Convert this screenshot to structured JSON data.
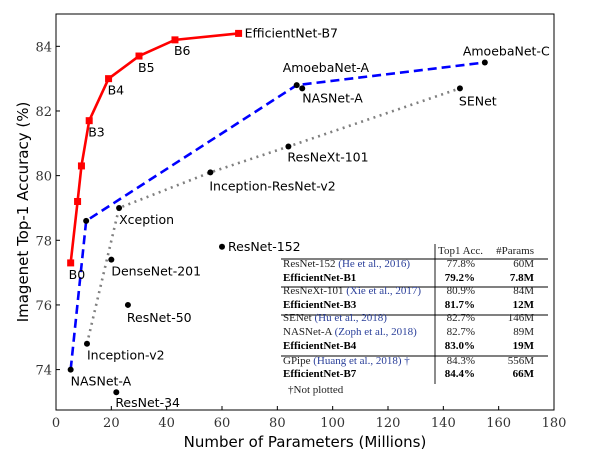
{
  "chart_data": {
    "type": "line",
    "xlabel": "Number of Parameters (Millions)",
    "ylabel": "Imagenet Top-1 Accuracy (%)",
    "xlim": [
      0,
      180
    ],
    "ylim": [
      72.75,
      85
    ],
    "xticks": [
      0,
      20,
      40,
      60,
      80,
      100,
      120,
      140,
      160,
      180
    ],
    "yticks": [
      74,
      76,
      78,
      80,
      82,
      84
    ],
    "grid": false,
    "series": [
      {
        "style": "red-solid-square",
        "color": "#ff0000",
        "points": [
          {
            "x": 5.3,
            "y": 77.3,
            "label": "B0"
          },
          {
            "x": 7.8,
            "y": 79.2,
            "label": ""
          },
          {
            "x": 9.2,
            "y": 80.3,
            "label": ""
          },
          {
            "x": 12,
            "y": 81.7,
            "label": "B3"
          },
          {
            "x": 19,
            "y": 83.0,
            "label": "B4"
          },
          {
            "x": 30,
            "y": 83.7,
            "label": "B5"
          },
          {
            "x": 43,
            "y": 84.2,
            "label": "B6"
          },
          {
            "x": 66,
            "y": 84.4,
            "label": "EfficientNet-B7"
          }
        ]
      },
      {
        "style": "blue-dashed",
        "color": "#0000ff",
        "points": [
          {
            "x": 5.3,
            "y": 74.0,
            "label": "NASNet-A"
          },
          {
            "x": 10.9,
            "y": 78.6,
            "label": ""
          },
          {
            "x": 87,
            "y": 82.8,
            "label": "AmoebaNet-A"
          },
          {
            "x": 155,
            "y": 83.5,
            "label": "AmoebaNet-C"
          }
        ]
      },
      {
        "style": "gray-dotted",
        "color": "#808080",
        "points": [
          {
            "x": 11.2,
            "y": 74.8,
            "label": "Inception-v2"
          },
          {
            "x": 22.8,
            "y": 79.0,
            "label": "Xception"
          },
          {
            "x": 55.8,
            "y": 80.1,
            "label": "Inception-ResNet-v2"
          },
          {
            "x": 84,
            "y": 80.9,
            "label": "ResNeXt-101"
          },
          {
            "x": 146,
            "y": 82.7,
            "label": "SENet"
          }
        ]
      }
    ],
    "scatter": [
      {
        "x": 20,
        "y": 77.4,
        "label": "DenseNet-201"
      },
      {
        "x": 60,
        "y": 77.8,
        "label": "ResNet-152"
      },
      {
        "x": 26,
        "y": 76.0,
        "label": "ResNet-50"
      },
      {
        "x": 21.8,
        "y": 73.3,
        "label": "ResNet-34"
      },
      {
        "x": 89,
        "y": 82.7,
        "label": "NASNet-A"
      }
    ],
    "table": {
      "headers": [
        "Top1 Acc.",
        "#Params"
      ],
      "rows": [
        {
          "name": "ResNet-152",
          "cite": "(He et al., 2016)",
          "acc": "77.8%",
          "params": "60M",
          "bold": false
        },
        {
          "name": "EfficientNet-B1",
          "cite": "",
          "acc": "79.2%",
          "params": "7.8M",
          "bold": true
        },
        {
          "name": "ResNeXt-101",
          "cite": "(Xie et al., 2017)",
          "acc": "80.9%",
          "params": "84M",
          "bold": false
        },
        {
          "name": "EfficientNet-B3",
          "cite": "",
          "acc": "81.7%",
          "params": "12M",
          "bold": true
        },
        {
          "name": "SENet",
          "cite": "(Hu et al., 2018)",
          "acc": "82.7%",
          "params": "146M",
          "bold": false
        },
        {
          "name": "NASNet-A",
          "cite": "(Zoph et al., 2018)",
          "acc": "82.7%",
          "params": "89M",
          "bold": false
        },
        {
          "name": "EfficientNet-B4",
          "cite": "",
          "acc": "83.0%",
          "params": "19M",
          "bold": true
        },
        {
          "name": "GPipe",
          "cite": "(Huang et al., 2018) †",
          "acc": "84.3%",
          "params": "556M",
          "bold": false
        },
        {
          "name": "EfficientNet-B7",
          "cite": "",
          "acc": "84.4%",
          "params": "66M",
          "bold": true
        }
      ],
      "footnote": "†Not plotted"
    }
  }
}
